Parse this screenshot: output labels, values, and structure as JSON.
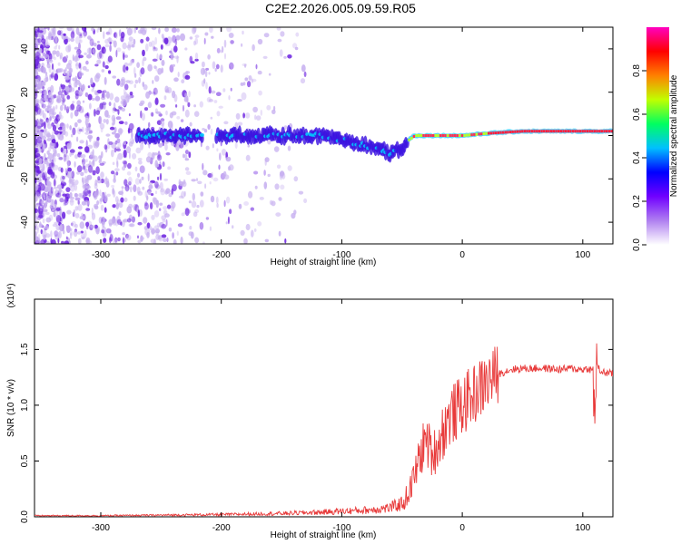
{
  "title": "C2E2.2026.005.09.59.R05",
  "colors": {
    "spectrogram_low": "#c7b0f0",
    "spectrogram_mid": "#6a1fe0",
    "snr_line": "#e83a3a",
    "colorbar": [
      "#ffffff",
      "#b080f0",
      "#7000ff",
      "#0000ff",
      "#00c0ff",
      "#00ff60",
      "#c0ff00",
      "#ff8000",
      "#ff0000",
      "#ff00c0"
    ]
  },
  "chart_data": [
    {
      "type": "heatmap",
      "title": "C2E2.2026.005.09.59.R05",
      "xlabel": "Height of straight line (km)",
      "ylabel": "Frequency (Hz)",
      "xlim": [
        -355,
        125
      ],
      "ylim": [
        -50,
        50
      ],
      "x_ticks": [
        -300,
        -200,
        -100,
        0,
        100
      ],
      "y_ticks": [
        -40,
        -20,
        0,
        20,
        40
      ],
      "ridge": {
        "x": [
          -270,
          -220,
          -180,
          -140,
          -120,
          -100,
          -85,
          -70,
          -60,
          -50,
          -45,
          -40,
          -30,
          -20,
          -10,
          0,
          20,
          50,
          80,
          100,
          125
        ],
        "frequency": [
          0,
          0,
          0,
          0,
          0,
          -2,
          -4,
          -6,
          -8,
          -6,
          -2,
          0,
          0,
          0,
          0,
          0,
          1,
          2,
          2,
          2,
          2
        ]
      },
      "colorbar": {
        "label": "Normalized spectral amplitude",
        "range": [
          0,
          1
        ],
        "ticks": [
          "0.0",
          "0.2",
          "0.4",
          "0.6",
          "0.8"
        ]
      }
    },
    {
      "type": "line",
      "xlabel": "Height of straight line (km)",
      "ylabel": "SNR (10 * v/v)",
      "scale_label": "(x10⁴)",
      "xlim": [
        -355,
        125
      ],
      "ylim": [
        0,
        1.95
      ],
      "x_ticks": [
        -300,
        -200,
        -100,
        0,
        100
      ],
      "y_ticks": [
        "0.0",
        "0.5",
        "1.0",
        "1.5"
      ],
      "series": [
        {
          "x": [
            -355,
            -300,
            -250,
            -200,
            -150,
            -120,
            -100,
            -80,
            -60,
            -50,
            -45,
            -40,
            -35,
            -30,
            -25,
            -20,
            -15,
            -10,
            -5,
            0,
            5,
            10,
            15,
            20,
            25,
            30,
            35,
            40,
            50,
            60,
            70,
            80,
            90,
            100,
            105,
            108,
            110,
            112,
            115,
            120,
            125
          ],
          "values": [
            0.01,
            0.01,
            0.015,
            0.02,
            0.03,
            0.04,
            0.05,
            0.06,
            0.08,
            0.12,
            0.2,
            0.35,
            0.55,
            0.7,
            0.55,
            0.65,
            0.8,
            0.9,
            0.95,
            1.0,
            1.05,
            1.1,
            1.15,
            1.2,
            1.25,
            1.28,
            1.3,
            1.32,
            1.33,
            1.33,
            1.33,
            1.32,
            1.33,
            1.32,
            1.33,
            1.3,
            0.72,
            1.35,
            1.3,
            1.29,
            1.28
          ]
        }
      ]
    }
  ]
}
